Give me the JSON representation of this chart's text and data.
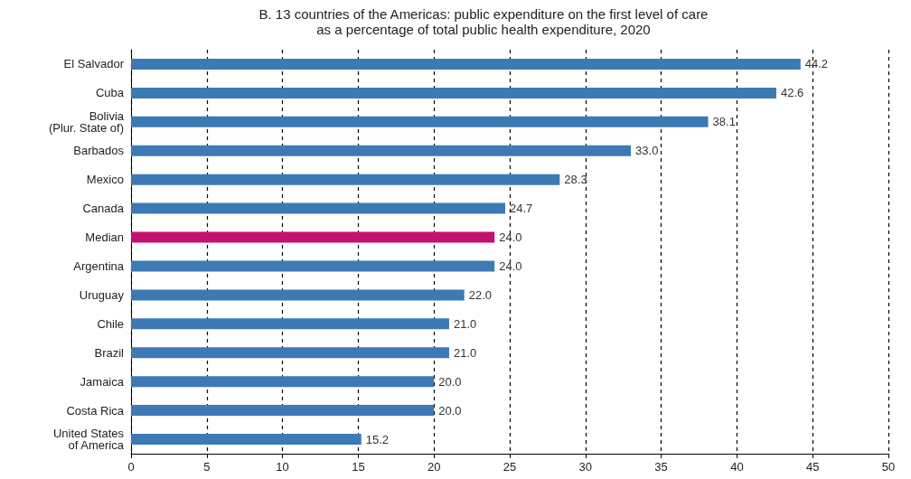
{
  "chart_data": {
    "type": "bar",
    "orientation": "horizontal",
    "title": "B. 13 countries of the Americas: public expenditure on the first level of care\nas a percentage of total public health expenditure, 2020",
    "categories": [
      "El Salvador",
      "Cuba",
      "Bolivia\n(Plur. State of)",
      "Barbados",
      "Mexico",
      "Canada",
      "Median",
      "Argentina",
      "Uruguay",
      "Chile",
      "Brazil",
      "Jamaica",
      "Costa Rica",
      "United States\nof America"
    ],
    "values": [
      44.2,
      42.6,
      38.1,
      33.0,
      28.3,
      24.7,
      24.0,
      24.0,
      22.0,
      21.0,
      21.0,
      20.0,
      20.0,
      15.2
    ],
    "value_labels": [
      "44.2",
      "42.6",
      "38.1",
      "33.0",
      "28.3",
      "24.7",
      "24.0",
      "24.0",
      "22.0",
      "21.0",
      "21.0",
      "20.0",
      "20.0",
      "15.2"
    ],
    "colors": [
      "#3d7ab4",
      "#3d7ab4",
      "#3d7ab4",
      "#3d7ab4",
      "#3d7ab4",
      "#3d7ab4",
      "#c4116f",
      "#3d7ab4",
      "#3d7ab4",
      "#3d7ab4",
      "#3d7ab4",
      "#3d7ab4",
      "#3d7ab4",
      "#3d7ab4"
    ],
    "xlim": [
      0,
      50
    ],
    "xticks": [
      0,
      5,
      10,
      15,
      20,
      25,
      30,
      35,
      40,
      45,
      50
    ],
    "grid": "x"
  }
}
